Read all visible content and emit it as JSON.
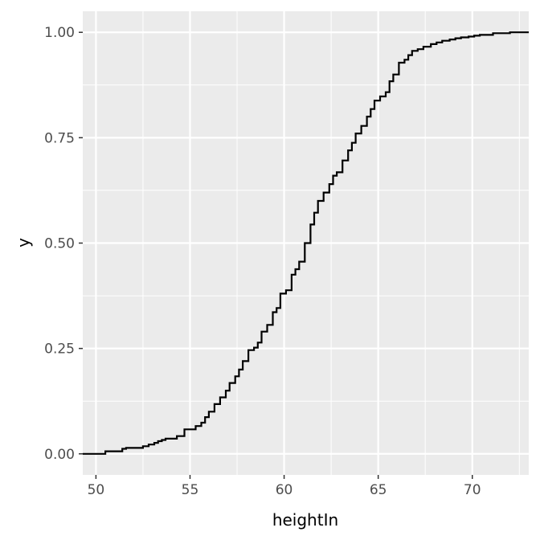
{
  "chart_data": {
    "type": "line",
    "subtype": "step-ecdf",
    "title": "",
    "xlabel": "heightIn",
    "ylabel": "y",
    "xlim": [
      49.3,
      73.0
    ],
    "ylim": [
      -0.05,
      1.05
    ],
    "x_ticks": [
      50,
      55,
      60,
      65,
      70
    ],
    "x_tick_labels": [
      "50",
      "55",
      "60",
      "65",
      "70"
    ],
    "y_ticks": [
      0,
      0.25,
      0.5,
      0.75,
      1
    ],
    "y_tick_labels": [
      "0.00",
      "0.25",
      "0.50",
      "0.75",
      "1.00"
    ],
    "grid": true,
    "legend": "none",
    "colors": {
      "panel": "#ebebeb",
      "grid": "#ffffff",
      "line": "#000000"
    },
    "series": [
      {
        "x": [
          50.5,
          51.4,
          51.6,
          52.5,
          52.8,
          53.1,
          53.3,
          53.5,
          53.7,
          54.3,
          54.7,
          55.3,
          55.6,
          55.8,
          56.0,
          56.3,
          56.6,
          56.9,
          57.1,
          57.4,
          57.6,
          57.8,
          58.1,
          58.4,
          58.6,
          58.8,
          59.1,
          59.4,
          59.6,
          59.8,
          60.1,
          60.4,
          60.6,
          60.8,
          61.1,
          61.4,
          61.6,
          61.8,
          62.1,
          62.4,
          62.6,
          62.8,
          63.1,
          63.4,
          63.6,
          63.8,
          64.1,
          64.4,
          64.6,
          64.8,
          65.1,
          65.4,
          65.6,
          65.8,
          66.1,
          66.4,
          66.6,
          66.8,
          67.1,
          67.4,
          67.8,
          68.1,
          68.4,
          68.8,
          69.1,
          69.4,
          69.8,
          70.1,
          70.4,
          71.1,
          72.0
        ],
        "y": [
          0.006,
          0.012,
          0.014,
          0.018,
          0.022,
          0.026,
          0.03,
          0.033,
          0.036,
          0.042,
          0.058,
          0.066,
          0.074,
          0.087,
          0.1,
          0.118,
          0.134,
          0.15,
          0.168,
          0.184,
          0.2,
          0.22,
          0.246,
          0.252,
          0.264,
          0.29,
          0.306,
          0.336,
          0.346,
          0.38,
          0.388,
          0.425,
          0.438,
          0.456,
          0.5,
          0.544,
          0.572,
          0.6,
          0.62,
          0.64,
          0.66,
          0.668,
          0.696,
          0.72,
          0.738,
          0.76,
          0.778,
          0.8,
          0.818,
          0.838,
          0.848,
          0.858,
          0.884,
          0.9,
          0.928,
          0.935,
          0.946,
          0.956,
          0.96,
          0.966,
          0.972,
          0.976,
          0.98,
          0.983,
          0.986,
          0.988,
          0.99,
          0.992,
          0.994,
          0.998,
          1.0
        ]
      }
    ]
  }
}
